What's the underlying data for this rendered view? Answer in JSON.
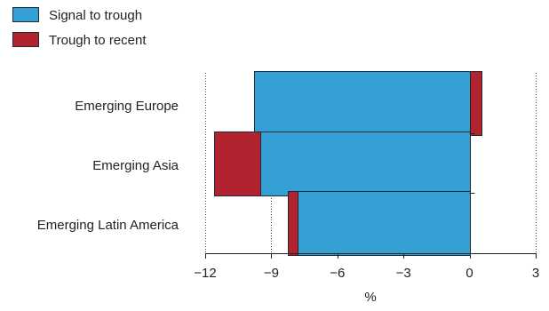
{
  "chart_data": {
    "type": "bar",
    "orientation": "horizontal",
    "stacked": "diverging",
    "categories": [
      "Emerging Europe",
      "Emerging Asia",
      "Emerging Latin America"
    ],
    "series": [
      {
        "name": "Signal to trough",
        "color": "#35A0D3",
        "values": [
          -9.8,
          -9.5,
          -7.8
        ]
      },
      {
        "name": "Trough to recent",
        "color": "#B1232F",
        "values": [
          0.55,
          -2.1,
          -0.45
        ]
      }
    ],
    "xlabel": "%",
    "xlim": [
      -12,
      3
    ],
    "xticks": [
      -12,
      -9,
      -6,
      -3,
      0,
      3
    ],
    "xtick_labels": [
      "−12",
      "−9",
      "−6",
      "−3",
      "0",
      "3"
    ],
    "grid": "vertical dotted",
    "legend_position": "top-left"
  }
}
